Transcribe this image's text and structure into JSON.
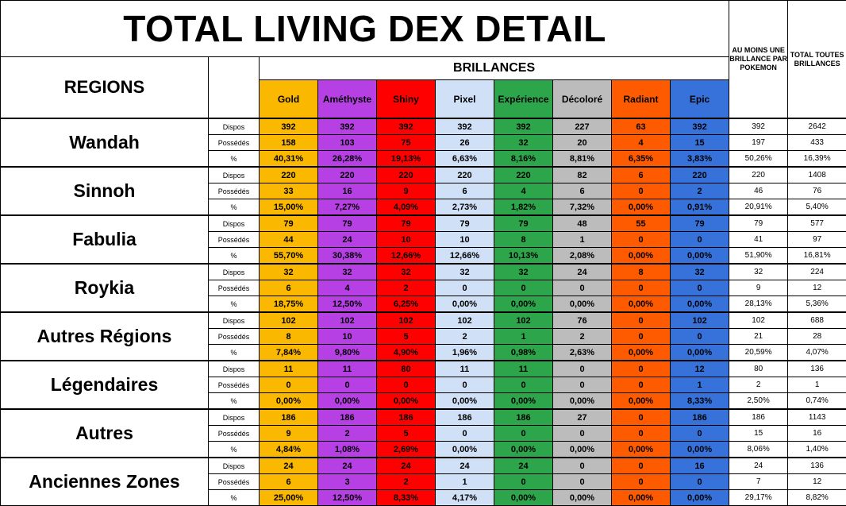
{
  "title": "TOTAL LIVING DEX DETAIL",
  "header": {
    "regions": "REGIONS",
    "brillances": "BRILLANCES",
    "au_moins": "AU MOINS UNE BRILLANCE PAR POKEMON",
    "total": "TOTAL TOUTES BRILLANCES",
    "row_labels": [
      "Dispos",
      "Possédés",
      "%"
    ]
  },
  "categories": [
    {
      "name": "Gold",
      "color": "#fbb800"
    },
    {
      "name": "Améthyste",
      "color": "#b640e3"
    },
    {
      "name": "Shiny",
      "color": "#fe0000"
    },
    {
      "name": "Pixel",
      "color": "#d0e0f6"
    },
    {
      "name": "Expérience",
      "color": "#2da54a"
    },
    {
      "name": "Décoloré",
      "color": "#bcbcbc"
    },
    {
      "name": "Radiant",
      "color": "#fe5a00"
    },
    {
      "name": "Epic",
      "color": "#3772db"
    }
  ],
  "regions": [
    {
      "name": "Wandah",
      "dispos": [
        "392",
        "392",
        "392",
        "392",
        "392",
        "227",
        "63",
        "392"
      ],
      "dispos_min": "392",
      "dispos_total": "2642",
      "possedes": [
        "158",
        "103",
        "75",
        "26",
        "32",
        "20",
        "4",
        "15"
      ],
      "possedes_min": "197",
      "possedes_total": "433",
      "pct": [
        "40,31%",
        "26,28%",
        "19,13%",
        "6,63%",
        "8,16%",
        "8,81%",
        "6,35%",
        "3,83%"
      ],
      "pct_min": "50,26%",
      "pct_total": "16,39%"
    },
    {
      "name": "Sinnoh",
      "dispos": [
        "220",
        "220",
        "220",
        "220",
        "220",
        "82",
        "6",
        "220"
      ],
      "dispos_min": "220",
      "dispos_total": "1408",
      "possedes": [
        "33",
        "16",
        "9",
        "6",
        "4",
        "6",
        "0",
        "2"
      ],
      "possedes_min": "46",
      "possedes_total": "76",
      "pct": [
        "15,00%",
        "7,27%",
        "4,09%",
        "2,73%",
        "1,82%",
        "7,32%",
        "0,00%",
        "0,91%"
      ],
      "pct_min": "20,91%",
      "pct_total": "5,40%"
    },
    {
      "name": "Fabulia",
      "dispos": [
        "79",
        "79",
        "79",
        "79",
        "79",
        "48",
        "55",
        "79"
      ],
      "dispos_min": "79",
      "dispos_total": "577",
      "possedes": [
        "44",
        "24",
        "10",
        "10",
        "8",
        "1",
        "0",
        "0"
      ],
      "possedes_min": "41",
      "possedes_total": "97",
      "pct": [
        "55,70%",
        "30,38%",
        "12,66%",
        "12,66%",
        "10,13%",
        "2,08%",
        "0,00%",
        "0,00%"
      ],
      "pct_min": "51,90%",
      "pct_total": "16,81%"
    },
    {
      "name": "Roykia",
      "dispos": [
        "32",
        "32",
        "32",
        "32",
        "32",
        "24",
        "8",
        "32"
      ],
      "dispos_min": "32",
      "dispos_total": "224",
      "possedes": [
        "6",
        "4",
        "2",
        "0",
        "0",
        "0",
        "0",
        "0"
      ],
      "possedes_min": "9",
      "possedes_total": "12",
      "pct": [
        "18,75%",
        "12,50%",
        "6,25%",
        "0,00%",
        "0,00%",
        "0,00%",
        "0,00%",
        "0,00%"
      ],
      "pct_min": "28,13%",
      "pct_total": "5,36%"
    },
    {
      "name": "Autres Régions",
      "dispos": [
        "102",
        "102",
        "102",
        "102",
        "102",
        "76",
        "0",
        "102"
      ],
      "dispos_min": "102",
      "dispos_total": "688",
      "possedes": [
        "8",
        "10",
        "5",
        "2",
        "1",
        "2",
        "0",
        "0"
      ],
      "possedes_min": "21",
      "possedes_total": "28",
      "pct": [
        "7,84%",
        "9,80%",
        "4,90%",
        "1,96%",
        "0,98%",
        "2,63%",
        "0,00%",
        "0,00%"
      ],
      "pct_min": "20,59%",
      "pct_total": "4,07%"
    },
    {
      "name": "Légendaires",
      "dispos": [
        "11",
        "11",
        "80",
        "11",
        "11",
        "0",
        "0",
        "12"
      ],
      "dispos_min": "80",
      "dispos_total": "136",
      "possedes": [
        "0",
        "0",
        "0",
        "0",
        "0",
        "0",
        "0",
        "1"
      ],
      "possedes_min": "2",
      "possedes_total": "1",
      "pct": [
        "0,00%",
        "0,00%",
        "0,00%",
        "0,00%",
        "0,00%",
        "0,00%",
        "0,00%",
        "8,33%"
      ],
      "pct_min": "2,50%",
      "pct_total": "0,74%"
    },
    {
      "name": "Autres",
      "dispos": [
        "186",
        "186",
        "186",
        "186",
        "186",
        "27",
        "0",
        "186"
      ],
      "dispos_min": "186",
      "dispos_total": "1143",
      "possedes": [
        "9",
        "2",
        "5",
        "0",
        "0",
        "0",
        "0",
        "0"
      ],
      "possedes_min": "15",
      "possedes_total": "16",
      "pct": [
        "4,84%",
        "1,08%",
        "2,69%",
        "0,00%",
        "0,00%",
        "0,00%",
        "0,00%",
        "0,00%"
      ],
      "pct_min": "8,06%",
      "pct_total": "1,40%"
    },
    {
      "name": "Anciennes Zones",
      "dispos": [
        "24",
        "24",
        "24",
        "24",
        "24",
        "0",
        "0",
        "16"
      ],
      "dispos_min": "24",
      "dispos_total": "136",
      "possedes": [
        "6",
        "3",
        "2",
        "1",
        "0",
        "0",
        "0",
        "0"
      ],
      "possedes_min": "7",
      "possedes_total": "12",
      "pct": [
        "25,00%",
        "12,50%",
        "8,33%",
        "4,17%",
        "0,00%",
        "0,00%",
        "0,00%",
        "0,00%"
      ],
      "pct_min": "29,17%",
      "pct_total": "8,82%"
    }
  ]
}
